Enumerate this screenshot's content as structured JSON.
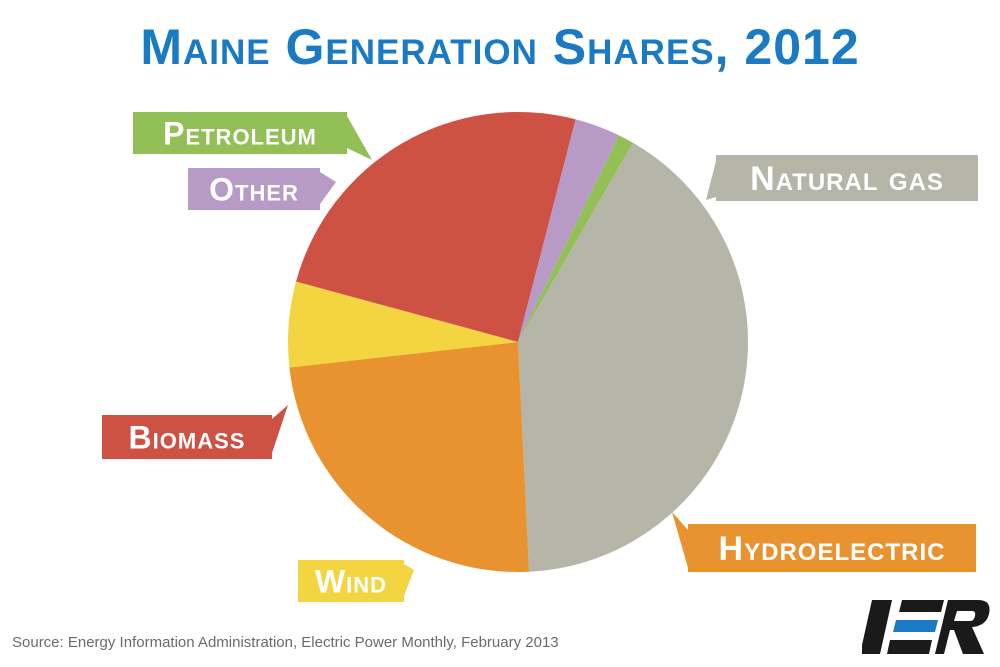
{
  "chart_data": {
    "type": "pie",
    "title": "Maine Generation Shares, 2012",
    "slices": [
      {
        "label": "Natural gas",
        "value": 40.9,
        "color": "#b5b5a8"
      },
      {
        "label": "Hydroelectric",
        "value": 24.0,
        "color": "#e8932f"
      },
      {
        "label": "Wind",
        "value": 6.0,
        "color": "#f2d541"
      },
      {
        "label": "Biomass",
        "value": 24.8,
        "color": "#cd5244"
      },
      {
        "label": "Other",
        "value": 3.2,
        "color": "#b79ac6"
      },
      {
        "label": "Petroleum",
        "value": 1.1,
        "color": "#93bf57"
      }
    ],
    "source": "Source: Energy Information Administration, Electric Power Monthly, February 2013"
  },
  "logo": {
    "text": "IER",
    "color": "#1a1a1a",
    "accent": "#1a7bc4"
  },
  "colors": {
    "title": "#1a7bc4",
    "background": "#ffffff"
  }
}
